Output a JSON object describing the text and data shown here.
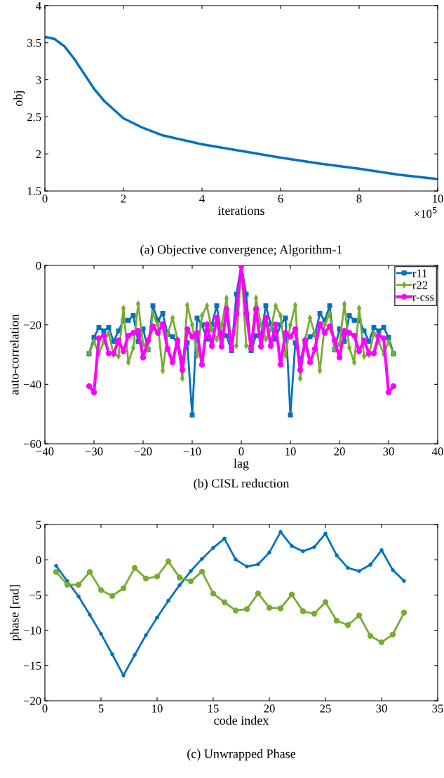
{
  "chart_data": [
    {
      "type": "line",
      "xlabel": "iterations",
      "ylabel": "obj",
      "xlim": [
        0,
        10
      ],
      "ylim": [
        1.5,
        4
      ],
      "xticks": [
        0,
        2,
        4,
        6,
        8,
        10
      ],
      "yticks": [
        1.5,
        2,
        2.5,
        3,
        3.5,
        4
      ],
      "marker": "none",
      "grid": false,
      "legend": false,
      "x": [
        0,
        0.25,
        0.5,
        0.75,
        1,
        1.25,
        1.5,
        2,
        2.5,
        3,
        4,
        5,
        6,
        7,
        8,
        9,
        10
      ],
      "series": [
        {
          "color": "#0072bd",
          "values": [
            3.58,
            3.55,
            3.45,
            3.28,
            3.08,
            2.88,
            2.72,
            2.48,
            2.35,
            2.25,
            2.13,
            2.04,
            1.95,
            1.87,
            1.8,
            1.72,
            1.66
          ]
        }
      ],
      "annotations": [
        "×10$^{5}$",
        "(a) Objective convergence; Algorithm-1"
      ]
    },
    {
      "type": "line",
      "xlabel": "lag",
      "ylabel": "auto-correlation",
      "xlim": [
        -40,
        40
      ],
      "ylim": [
        -60,
        0
      ],
      "xticks": [
        -40,
        -30,
        -20,
        -10,
        0,
        10,
        20,
        30,
        40
      ],
      "yticks": [
        -60,
        -40,
        -20,
        0
      ],
      "grid": false,
      "legend": "top right",
      "x": [
        -31,
        -30,
        -29,
        -28,
        -27,
        -26,
        -25,
        -24,
        -23,
        -22,
        -21,
        -20,
        -19,
        -18,
        -17,
        -16,
        -15,
        -14,
        -13,
        -12,
        -11,
        -10,
        -9,
        -8,
        -7,
        -6,
        -5,
        -4,
        -3,
        -2,
        -1,
        0,
        1,
        2,
        3,
        4,
        5,
        6,
        7,
        8,
        9,
        10,
        11,
        12,
        13,
        14,
        15,
        16,
        17,
        18,
        19,
        20,
        21,
        22,
        23,
        24,
        25,
        26,
        27,
        28,
        29,
        30,
        31
      ],
      "series": [
        {
          "name": "r11",
          "color": "#0072bd",
          "marker": "square",
          "values": [
            -29.7,
            -24.2,
            -20.9,
            -22,
            -20.9,
            -25.6,
            -22,
            -18.5,
            -18.5,
            -16.9,
            -25.6,
            -21.3,
            -28.3,
            -13.6,
            -18.5,
            -16.2,
            -23.2,
            -24,
            -26,
            -32,
            -26,
            -50.3,
            -17.7,
            -20,
            -24.8,
            -19.8,
            -13.6,
            -23.6,
            -23.6,
            -28.7,
            -9.7,
            0,
            -9.7,
            -28.7,
            -23.6,
            -23.6,
            -13.6,
            -19.8,
            -24.8,
            -20,
            -17.7,
            -50.3,
            -26,
            -32,
            -26,
            -24,
            -23.2,
            -16.2,
            -18.5,
            -13.6,
            -28.3,
            -21.3,
            -25.6,
            -16.9,
            -18.5,
            -18.5,
            -22,
            -25.6,
            -20.9,
            -22,
            -20.9,
            -24.2,
            -29.7
          ]
        },
        {
          "name": "r22",
          "color": "#77ac30",
          "marker": "diamond",
          "values": [
            -29.7,
            -25.6,
            -29.7,
            -25.6,
            -22.8,
            -30,
            -30.5,
            -14.4,
            -32.6,
            -27.7,
            -13,
            -26.5,
            -28.3,
            -16.2,
            -20,
            -35.4,
            -23.2,
            -17.7,
            -24.8,
            -38,
            -13.4,
            -20,
            -30.3,
            -16.9,
            -13.6,
            -21.6,
            -24.8,
            -20,
            -11,
            -27,
            -27,
            0,
            -27,
            -27,
            -11,
            -20,
            -24.8,
            -21.6,
            -13.6,
            -16.9,
            -30.3,
            -20,
            -13.4,
            -38,
            -24.8,
            -17.7,
            -23.2,
            -35.4,
            -20,
            -16.2,
            -28.3,
            -26.5,
            -13,
            -27.7,
            -32.6,
            -14.4,
            -30.5,
            -30,
            -22.8,
            -25.6,
            -29.7,
            -25.6,
            -29.7
          ]
        },
        {
          "name": "r-css",
          "color": "#ff00ff",
          "marker": "circle",
          "values": [
            -40.6,
            -42.7,
            -24.5,
            -23.6,
            -29.6,
            -29.6,
            -25.2,
            -28.9,
            -23.6,
            -22.7,
            -22,
            -31,
            -25.2,
            -20.5,
            -22.7,
            -19.7,
            -28.1,
            -32.6,
            -25.2,
            -35.2,
            -21.4,
            -24,
            -22.7,
            -33.4,
            -19.8,
            -27.1,
            -17.6,
            -27.3,
            -14.7,
            -27.9,
            -16.2,
            0,
            -16.2,
            -27.9,
            -14.7,
            -27.3,
            -17.6,
            -27.1,
            -19.8,
            -33.4,
            -22.7,
            -24,
            -21.4,
            -35.2,
            -25.2,
            -32.6,
            -28.1,
            -19.7,
            -22.7,
            -20.5,
            -25.2,
            -31,
            -22,
            -22.7,
            -23.6,
            -28.9,
            -25.2,
            -29.6,
            -29.6,
            -23.6,
            -24.5,
            -42.7,
            -40.6
          ]
        }
      ],
      "annotations": [
        "(b) CISL reduction"
      ]
    },
    {
      "type": "line",
      "xlabel": "code index",
      "ylabel": "phase [rad]",
      "xlim": [
        0,
        35
      ],
      "ylim": [
        -20,
        5
      ],
      "xticks": [
        0,
        5,
        10,
        15,
        20,
        25,
        30,
        35
      ],
      "yticks": [
        -20,
        -15,
        -10,
        -5,
        0,
        5
      ],
      "grid": false,
      "legend": false,
      "marker": "circle",
      "x": [
        1,
        2,
        3,
        4,
        5,
        6,
        7,
        8,
        9,
        10,
        11,
        12,
        13,
        14,
        15,
        16,
        17,
        18,
        19,
        20,
        21,
        22,
        23,
        24,
        25,
        26,
        27,
        28,
        29,
        30,
        31,
        32
      ],
      "series": [
        {
          "color": "#0072bd",
          "values": [
            -0.86,
            -3.05,
            -5.2,
            -7.8,
            -10.5,
            -13.4,
            -16.4,
            -13.5,
            -10.7,
            -8.2,
            -5.8,
            -3.6,
            -1.6,
            0.13,
            1.7,
            3.0,
            0.03,
            -0.96,
            -0.63,
            1.03,
            3.94,
            1.95,
            1.2,
            1.8,
            3.7,
            0.63,
            -1.16,
            -1.6,
            -0.7,
            1.36,
            -1.46,
            -3.0
          ]
        },
        {
          "color": "#77ac30",
          "values": [
            -1.72,
            -3.54,
            -3.54,
            -1.72,
            -4.3,
            -5.13,
            -4.04,
            -1.16,
            -2.65,
            -2.38,
            -0.23,
            -2.52,
            -3.05,
            -1.69,
            -4.8,
            -6.03,
            -7.2,
            -7.0,
            -4.77,
            -6.8,
            -6.9,
            -4.93,
            -7.3,
            -7.65,
            -6.0,
            -8.64,
            -9.27,
            -7.9,
            -10.8,
            -11.7,
            -10.6,
            -7.5
          ]
        }
      ],
      "annotations": [
        "(c) Unwrapped Phase"
      ]
    }
  ]
}
